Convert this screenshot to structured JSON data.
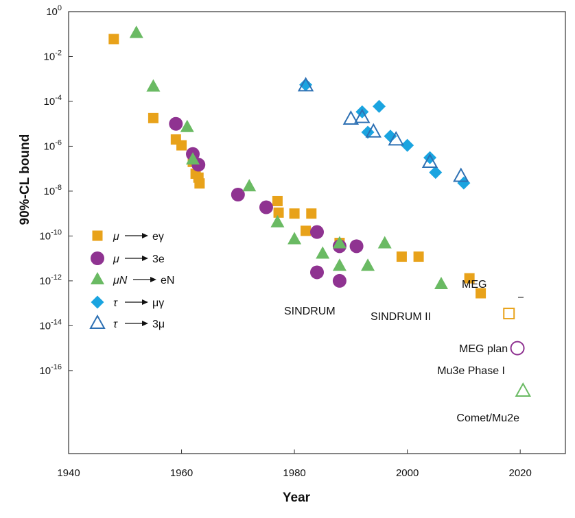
{
  "chart_data": {
    "type": "scatter",
    "xlabel": "Year",
    "ylabel": "90%-CL bound",
    "xlim": [
      1940,
      2028
    ],
    "ylim_log10": [
      -19.7,
      0
    ],
    "y_scale": "log",
    "x_ticks": [
      {
        "value": 1940,
        "label": "1940"
      },
      {
        "value": 1960,
        "label": "1960"
      },
      {
        "value": 1980,
        "label": "1980"
      },
      {
        "value": 2000,
        "label": "2000"
      },
      {
        "value": 2020,
        "label": "2020"
      }
    ],
    "y_ticks": [
      {
        "exp": 0,
        "base": "10",
        "sup": "0"
      },
      {
        "exp": -2,
        "base": "10",
        "sup": "-2"
      },
      {
        "exp": -4,
        "base": "10",
        "sup": "-4"
      },
      {
        "exp": -6,
        "base": "10",
        "sup": "-6"
      },
      {
        "exp": -8,
        "base": "10",
        "sup": "-8"
      },
      {
        "exp": -10,
        "base": "10",
        "sup": "-10"
      },
      {
        "exp": -12,
        "base": "10",
        "sup": "-12"
      },
      {
        "exp": -14,
        "base": "10",
        "sup": "-14"
      },
      {
        "exp": -16,
        "base": "10",
        "sup": "-16"
      }
    ],
    "series": [
      {
        "name": "mu-e-gamma",
        "legend": {
          "from": "μ",
          "to": "eγ"
        },
        "marker": "square",
        "filled": true,
        "color": "#e8a21a",
        "points": [
          {
            "x": 1948,
            "y": 0.06
          },
          {
            "x": 1955,
            "y": 1.8e-05
          },
          {
            "x": 1959,
            "y": 2e-06
          },
          {
            "x": 1960,
            "y": 1.1e-06
          },
          {
            "x": 1962,
            "y": 2e-07
          },
          {
            "x": 1962.5,
            "y": 6e-08
          },
          {
            "x": 1963,
            "y": 4e-08
          },
          {
            "x": 1963.2,
            "y": 2.2e-08
          },
          {
            "x": 1977,
            "y": 3.6e-09
          },
          {
            "x": 1977.2,
            "y": 1.1e-09
          },
          {
            "x": 1980,
            "y": 1e-09
          },
          {
            "x": 1982,
            "y": 1.7e-10
          },
          {
            "x": 1983,
            "y": 1e-09
          },
          {
            "x": 1988,
            "y": 4.9e-11
          },
          {
            "x": 1999,
            "y": 1.2e-11
          },
          {
            "x": 2002,
            "y": 1.2e-11
          },
          {
            "x": 2011,
            "y": 1.3e-12
          },
          {
            "x": 2013,
            "y": 2.8e-13
          }
        ]
      },
      {
        "name": "mu-3e",
        "legend": {
          "from": "μ",
          "to": "3e"
        },
        "marker": "circle",
        "filled": true,
        "color": "#8f3391",
        "points": [
          {
            "x": 1959,
            "y": 1e-05
          },
          {
            "x": 1962,
            "y": 4.5e-07
          },
          {
            "x": 1963,
            "y": 1.5e-07
          },
          {
            "x": 1970,
            "y": 7e-09
          },
          {
            "x": 1975,
            "y": 1.9e-09
          },
          {
            "x": 1984,
            "y": 1.5e-10
          },
          {
            "x": 1984,
            "y": 2.4e-12
          },
          {
            "x": 1988,
            "y": 3.5e-11
          },
          {
            "x": 1988,
            "y": 1e-12
          },
          {
            "x": 1991,
            "y": 3.5e-11
          }
        ]
      },
      {
        "name": "muN-eN",
        "legend": {
          "from": "μN",
          "to": "eN"
        },
        "marker": "triangle",
        "filled": true,
        "color": "#6aba63",
        "points": [
          {
            "x": 1952,
            "y": 0.11
          },
          {
            "x": 1955,
            "y": 0.00045
          },
          {
            "x": 1961,
            "y": 7e-06
          },
          {
            "x": 1962,
            "y": 2.5e-07
          },
          {
            "x": 1972,
            "y": 1.6e-08
          },
          {
            "x": 1977,
            "y": 4e-10
          },
          {
            "x": 1980,
            "y": 7e-11
          },
          {
            "x": 1985,
            "y": 1.6e-11
          },
          {
            "x": 1988,
            "y": 4.6e-11
          },
          {
            "x": 1988,
            "y": 4.6e-12
          },
          {
            "x": 1993,
            "y": 4.6e-12
          },
          {
            "x": 1996,
            "y": 4.6e-11
          },
          {
            "x": 2006,
            "y": 7e-13
          }
        ]
      },
      {
        "name": "tau-mu-gamma",
        "legend": {
          "from": "τ",
          "to": "μγ"
        },
        "marker": "diamond",
        "filled": true,
        "color": "#1aa4e0",
        "points": [
          {
            "x": 1982,
            "y": 0.00055
          },
          {
            "x": 1992,
            "y": 3.4e-05
          },
          {
            "x": 1993,
            "y": 4.2e-06
          },
          {
            "x": 1995,
            "y": 6e-05
          },
          {
            "x": 1997,
            "y": 2.8e-06
          },
          {
            "x": 2000,
            "y": 1.1e-06
          },
          {
            "x": 2004,
            "y": 3.1e-07
          },
          {
            "x": 2005,
            "y": 6.8e-08
          },
          {
            "x": 2010,
            "y": 2.3e-08
          }
        ]
      },
      {
        "name": "tau-3mu",
        "legend": {
          "from": "τ",
          "to": "3μ"
        },
        "marker": "triangle",
        "filled": false,
        "color": "#2d70b3",
        "points": [
          {
            "x": 1982,
            "y": 0.00049
          },
          {
            "x": 1990,
            "y": 1.6e-05
          },
          {
            "x": 1992,
            "y": 1.9e-05
          },
          {
            "x": 1994,
            "y": 4.3e-06
          },
          {
            "x": 1998,
            "y": 1.9e-06
          },
          {
            "x": 2004,
            "y": 1.9e-07
          },
          {
            "x": 2009.5,
            "y": 4.5e-08
          }
        ]
      }
    ],
    "projections": [
      {
        "name": "MEG plan",
        "marker": "square",
        "color": "#e8a21a",
        "x": 2018,
        "y": 3.5e-14
      },
      {
        "name": "Mu3e Phase I",
        "marker": "circle",
        "color": "#8f3391",
        "x": 2019.5,
        "y": 1e-15
      },
      {
        "name": "Comet/Mu2e",
        "marker": "triangle",
        "color": "#6aba63",
        "x": 2020.5,
        "y": 1.2e-17
      }
    ],
    "annotations": [
      {
        "id": "sindrum",
        "text": "SINDRUM"
      },
      {
        "id": "sindrum-ii",
        "text": "SINDRUM II"
      },
      {
        "id": "meg",
        "text": "MEG"
      },
      {
        "id": "meg-plan",
        "text": "MEG plan"
      },
      {
        "id": "mu3e",
        "text": "Mu3e Phase I"
      },
      {
        "id": "comet",
        "text": "Comet/Mu2e"
      }
    ]
  }
}
